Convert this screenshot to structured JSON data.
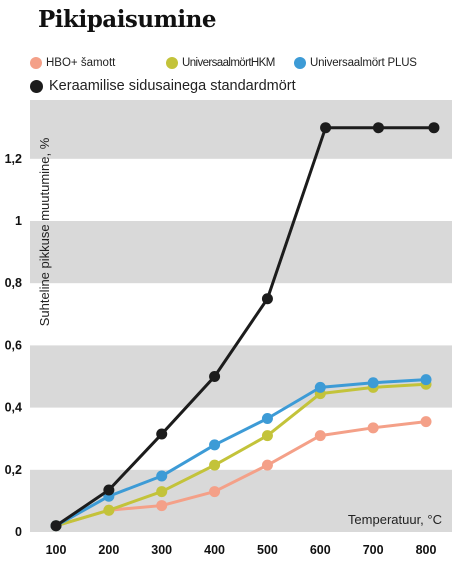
{
  "chart_data": {
    "type": "line",
    "title": "Pikipaisumine",
    "xlabel": "Temperatuur, °C",
    "ylabel": "Suhteline pikkuse muutumine, %",
    "x": [
      100,
      200,
      300,
      400,
      500,
      600,
      700,
      800
    ],
    "x_ticks": [
      "100",
      "200",
      "300",
      "400",
      "500",
      "600",
      "700",
      "800"
    ],
    "y_ticks": [
      "0",
      "0,2",
      "0,4",
      "0,6",
      "0,8",
      "1",
      "1,2"
    ],
    "ylim": [
      0,
      1.35
    ],
    "grid": "alternating horizontal gray bands",
    "legend_position": "top",
    "series": [
      {
        "name": "HBO+ šamott",
        "color": "#f4a088",
        "points": [
          [
            100,
            0.02
          ],
          [
            200,
            0.07
          ],
          [
            300,
            0.085
          ],
          [
            400,
            0.13
          ],
          [
            500,
            0.215
          ],
          [
            600,
            0.31
          ],
          [
            700,
            0.335
          ],
          [
            800,
            0.355
          ]
        ]
      },
      {
        "name": "UniversaalmörtHKM",
        "color": "#c3c33a",
        "points": [
          [
            100,
            0.02
          ],
          [
            200,
            0.07
          ],
          [
            300,
            0.13
          ],
          [
            400,
            0.215
          ],
          [
            500,
            0.31
          ],
          [
            600,
            0.445
          ],
          [
            700,
            0.465
          ],
          [
            800,
            0.475
          ]
        ]
      },
      {
        "name": "Universaalmört PLUS",
        "color": "#3d9bd6",
        "points": [
          [
            100,
            0.02
          ],
          [
            200,
            0.115
          ],
          [
            300,
            0.18
          ],
          [
            400,
            0.28
          ],
          [
            500,
            0.365
          ],
          [
            600,
            0.465
          ],
          [
            700,
            0.48
          ],
          [
            800,
            0.49
          ]
        ]
      },
      {
        "name": "Keraamilise sidusainega standardmört",
        "color": "#1c1c1c",
        "points": [
          [
            100,
            0.02
          ],
          [
            200,
            0.135
          ],
          [
            300,
            0.315
          ],
          [
            400,
            0.5
          ],
          [
            500,
            0.75
          ],
          [
            610,
            1.3
          ],
          [
            710,
            1.3
          ],
          [
            815,
            1.3
          ]
        ]
      }
    ]
  }
}
